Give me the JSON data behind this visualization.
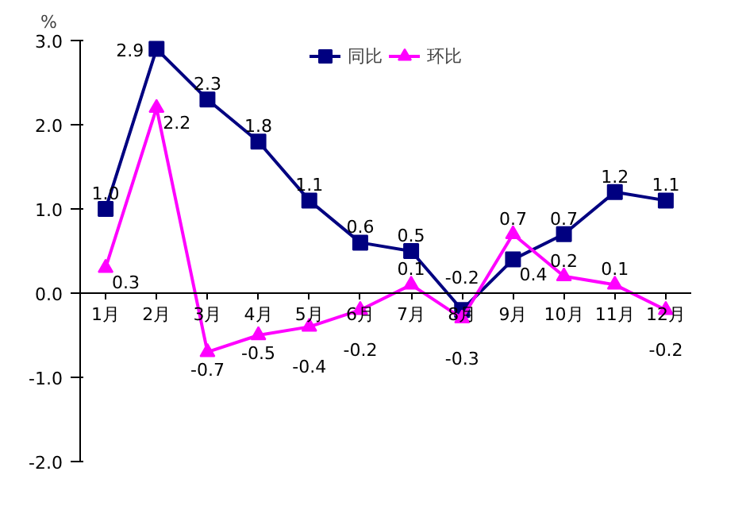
{
  "chart_data": {
    "type": "line",
    "ylabel": "%",
    "categories": [
      "1月",
      "2月",
      "3月",
      "4月",
      "5月",
      "6月",
      "7月",
      "8月",
      "9月",
      "10月",
      "11月",
      "12月"
    ],
    "series": [
      {
        "name": "同比",
        "color": "#000080",
        "marker": "square",
        "values": [
          1.0,
          2.9,
          2.3,
          1.8,
          1.1,
          0.6,
          0.5,
          -0.2,
          0.4,
          0.7,
          1.2,
          1.1
        ],
        "value_labels": [
          "1.0",
          "2.9",
          "2.3",
          "1.8",
          "1.1",
          "0.6",
          "0.5",
          "-0.2",
          "0.4",
          "0.7",
          "1.2",
          "1.1"
        ]
      },
      {
        "name": "环比",
        "color": "#ff00ff",
        "marker": "triangle",
        "values": [
          0.3,
          2.2,
          -0.7,
          -0.5,
          -0.4,
          -0.2,
          0.1,
          -0.3,
          0.7,
          0.2,
          0.1,
          -0.2
        ],
        "value_labels": [
          "0.3",
          "2.2",
          "-0.7",
          "-0.5",
          "-0.4",
          "-0.2",
          "0.1",
          "-0.3",
          "0.7",
          "0.2",
          "0.1",
          "-0.2"
        ]
      }
    ],
    "ylim": [
      -2.0,
      3.0
    ],
    "yticks": [
      {
        "value": -2,
        "label": "-2.0"
      },
      {
        "value": -1,
        "label": "-1.0"
      },
      {
        "value": 0,
        "label": "0.0"
      },
      {
        "value": 1,
        "label": "1.0"
      },
      {
        "value": 2,
        "label": "2.0"
      },
      {
        "value": 3,
        "label": "3.0"
      }
    ],
    "legend": "top"
  }
}
